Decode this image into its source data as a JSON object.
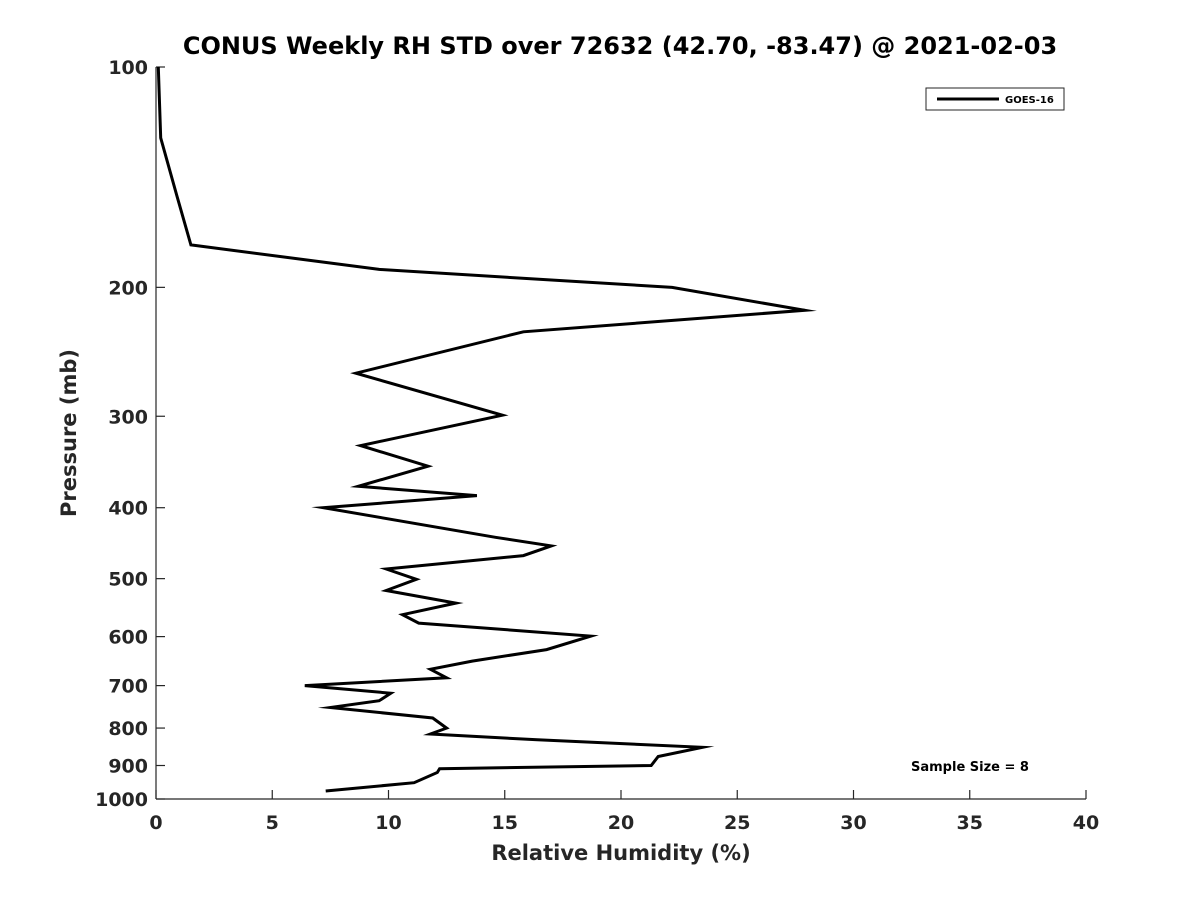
{
  "chart_data": {
    "type": "line",
    "title": "CONUS Weekly RH STD over 72632 (42.70, -83.47) @ 2021-02-03",
    "xlabel": "Relative Humidity (%)",
    "ylabel": "Pressure (mb)",
    "xlim": [
      0,
      40
    ],
    "ylim": [
      100,
      1000
    ],
    "y_scale": "log",
    "y_reversed": true,
    "x_ticks": [
      0,
      5,
      10,
      15,
      20,
      25,
      30,
      35,
      40
    ],
    "y_ticks": [
      100,
      200,
      300,
      400,
      500,
      600,
      700,
      800,
      900,
      1000
    ],
    "grid": false,
    "legend_position": "top-right",
    "annotation": "Sample Size = 8",
    "series": [
      {
        "name": "GOES-16",
        "color": "#000000",
        "points": [
          [
            0.1,
            100
          ],
          [
            0.2,
            125
          ],
          [
            0.9,
            150
          ],
          [
            1.5,
            175
          ],
          [
            9.6,
            189
          ],
          [
            22.2,
            200
          ],
          [
            27.9,
            215
          ],
          [
            15.8,
            230
          ],
          [
            8.6,
            262
          ],
          [
            14.9,
            299
          ],
          [
            8.8,
            329
          ],
          [
            11.7,
            351
          ],
          [
            8.7,
            374
          ],
          [
            13.8,
            385
          ],
          [
            7.2,
            400
          ],
          [
            14.6,
            439
          ],
          [
            17.0,
            451
          ],
          [
            15.8,
            465
          ],
          [
            9.9,
            485
          ],
          [
            11.2,
            501
          ],
          [
            9.9,
            519
          ],
          [
            12.9,
            540
          ],
          [
            10.6,
            560
          ],
          [
            11.3,
            575
          ],
          [
            18.7,
            599
          ],
          [
            16.8,
            625
          ],
          [
            13.6,
            648
          ],
          [
            11.8,
            665
          ],
          [
            12.5,
            683
          ],
          [
            6.4,
            700
          ],
          [
            10.1,
            717
          ],
          [
            9.6,
            734
          ],
          [
            7.5,
            750
          ],
          [
            11.9,
            775
          ],
          [
            12.5,
            800
          ],
          [
            11.8,
            815
          ],
          [
            16.4,
            830
          ],
          [
            23.5,
            850
          ],
          [
            21.6,
            875
          ],
          [
            21.3,
            900
          ],
          [
            12.2,
            909
          ],
          [
            12.1,
            920
          ],
          [
            11.1,
            950
          ],
          [
            7.3,
            975
          ]
        ]
      }
    ]
  }
}
